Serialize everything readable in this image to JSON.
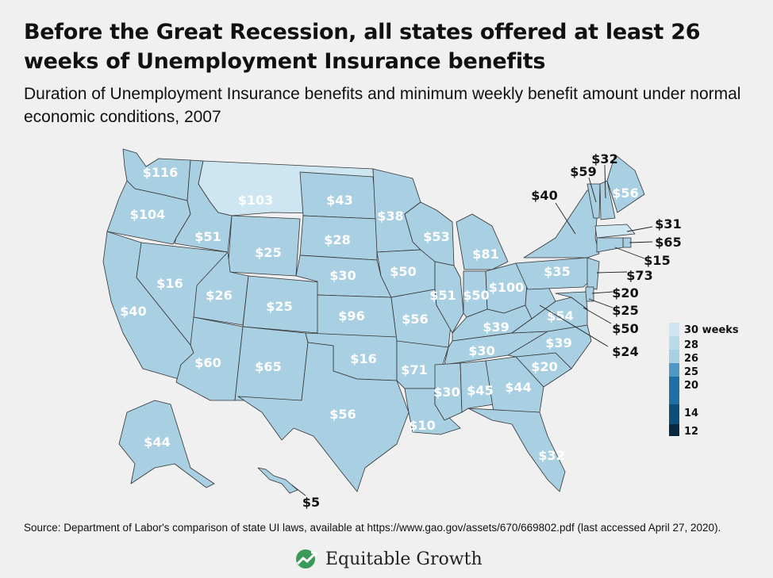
{
  "title": "Before the Great Recession, all states offered at least 26 weeks of Unemployment Insurance benefits",
  "subtitle": "Duration of Unemployment Insurance benefits and minimum weekly benefit amount under normal economic conditions, 2007",
  "source": "Source: Department of Labor's comparison of state UI laws, available at https://www.gao.gov/assets/670/669802.pdf (last accessed April 27, 2020).",
  "brand": "Equitable Growth",
  "colors": {
    "state_fill": "#a9cfe2",
    "state_fill_30_weeks": "#cde6f1",
    "state_border": "#333333",
    "map_label": "#ffffff",
    "callout_label": "#111111"
  },
  "legend": {
    "stops": [
      {
        "label": "30 weeks",
        "color": "#cde6f1"
      },
      {
        "label": "28",
        "color": "#b9dbea"
      },
      {
        "label": "26",
        "color": "#a9cfe2"
      },
      {
        "label": "25",
        "color": "#4f97c4"
      },
      {
        "label": "20",
        "color": "#1e6fa5"
      },
      {
        "label": "14",
        "color": "#0c4f7a"
      },
      {
        "label": "12",
        "color": "#07283f"
      }
    ]
  },
  "states": [
    {
      "name": "Washington",
      "label": "$116",
      "weeks": 26
    },
    {
      "name": "Oregon",
      "label": "$104",
      "weeks": 26
    },
    {
      "name": "California",
      "label": "$40",
      "weeks": 26
    },
    {
      "name": "Idaho",
      "label": "$51",
      "weeks": 26
    },
    {
      "name": "Nevada",
      "label": "$16",
      "weeks": 26
    },
    {
      "name": "Montana",
      "label": "$103",
      "weeks": 30
    },
    {
      "name": "Wyoming",
      "label": "$25",
      "weeks": 26
    },
    {
      "name": "Utah",
      "label": "$26",
      "weeks": 26
    },
    {
      "name": "Arizona",
      "label": "$60",
      "weeks": 26
    },
    {
      "name": "Colorado",
      "label": "$25",
      "weeks": 26
    },
    {
      "name": "New Mexico",
      "label": "$65",
      "weeks": 26
    },
    {
      "name": "North Dakota",
      "label": "$43",
      "weeks": 26
    },
    {
      "name": "South Dakota",
      "label": "$28",
      "weeks": 26
    },
    {
      "name": "Nebraska",
      "label": "$30",
      "weeks": 26
    },
    {
      "name": "Kansas",
      "label": "$96",
      "weeks": 26
    },
    {
      "name": "Oklahoma",
      "label": "$16",
      "weeks": 26
    },
    {
      "name": "Texas",
      "label": "$56",
      "weeks": 26
    },
    {
      "name": "Minnesota",
      "label": "$38",
      "weeks": 26
    },
    {
      "name": "Iowa",
      "label": "$50",
      "weeks": 26
    },
    {
      "name": "Missouri",
      "label": "$56",
      "weeks": 26
    },
    {
      "name": "Arkansas",
      "label": "$71",
      "weeks": 26
    },
    {
      "name": "Louisiana",
      "label": "$10",
      "weeks": 26
    },
    {
      "name": "Wisconsin",
      "label": "$53",
      "weeks": 26
    },
    {
      "name": "Illinois",
      "label": "$51",
      "weeks": 26
    },
    {
      "name": "Michigan",
      "label": "$81",
      "weeks": 26
    },
    {
      "name": "Indiana",
      "label": "$50",
      "weeks": 26
    },
    {
      "name": "Ohio",
      "label": "$100",
      "weeks": 26
    },
    {
      "name": "Kentucky",
      "label": "$39",
      "weeks": 26
    },
    {
      "name": "Tennessee",
      "label": "$30",
      "weeks": 26
    },
    {
      "name": "Mississippi",
      "label": "$30",
      "weeks": 26
    },
    {
      "name": "Alabama",
      "label": "$45",
      "weeks": 26
    },
    {
      "name": "Georgia",
      "label": "$44",
      "weeks": 26
    },
    {
      "name": "Florida",
      "label": "$32",
      "weeks": 26
    },
    {
      "name": "South Carolina",
      "label": "$20",
      "weeks": 26
    },
    {
      "name": "North Carolina",
      "label": "$39",
      "weeks": 26
    },
    {
      "name": "Virginia",
      "label": "$54",
      "weeks": 26
    },
    {
      "name": "West Virginia",
      "label": "$24",
      "weeks": 26
    },
    {
      "name": "Pennsylvania",
      "label": "$35",
      "weeks": 26
    },
    {
      "name": "New York",
      "label": "$40",
      "weeks": 26
    },
    {
      "name": "Vermont",
      "label": "$59",
      "weeks": 26
    },
    {
      "name": "New Hampshire",
      "label": "$32",
      "weeks": 26
    },
    {
      "name": "Maine",
      "label": "$56",
      "weeks": 26
    },
    {
      "name": "Massachusetts",
      "label": "$31",
      "weeks": 30
    },
    {
      "name": "Rhode Island",
      "label": "$65",
      "weeks": 26
    },
    {
      "name": "Connecticut",
      "label": "$15",
      "weeks": 26
    },
    {
      "name": "New Jersey",
      "label": "$73",
      "weeks": 26
    },
    {
      "name": "Delaware",
      "label": "$20",
      "weeks": 26
    },
    {
      "name": "Maryland",
      "label": "$25",
      "weeks": 26
    },
    {
      "name": "District of Columbia",
      "label": "$50",
      "weeks": 26
    },
    {
      "name": "Alaska",
      "label": "$44",
      "weeks": 26
    },
    {
      "name": "Hawaii",
      "label": "$5",
      "weeks": 26
    }
  ]
}
